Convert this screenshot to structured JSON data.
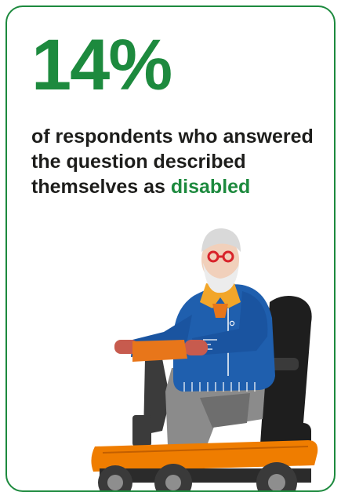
{
  "theme": {
    "accent": "#1d8a3e",
    "text": "#1d1d1b"
  },
  "card": {
    "stat": "14%",
    "description_main": "of respondents who answered the question described themselves as",
    "description_highlight": "disabled"
  },
  "illustration": {
    "name": "older-man-on-mobility-scooter"
  }
}
